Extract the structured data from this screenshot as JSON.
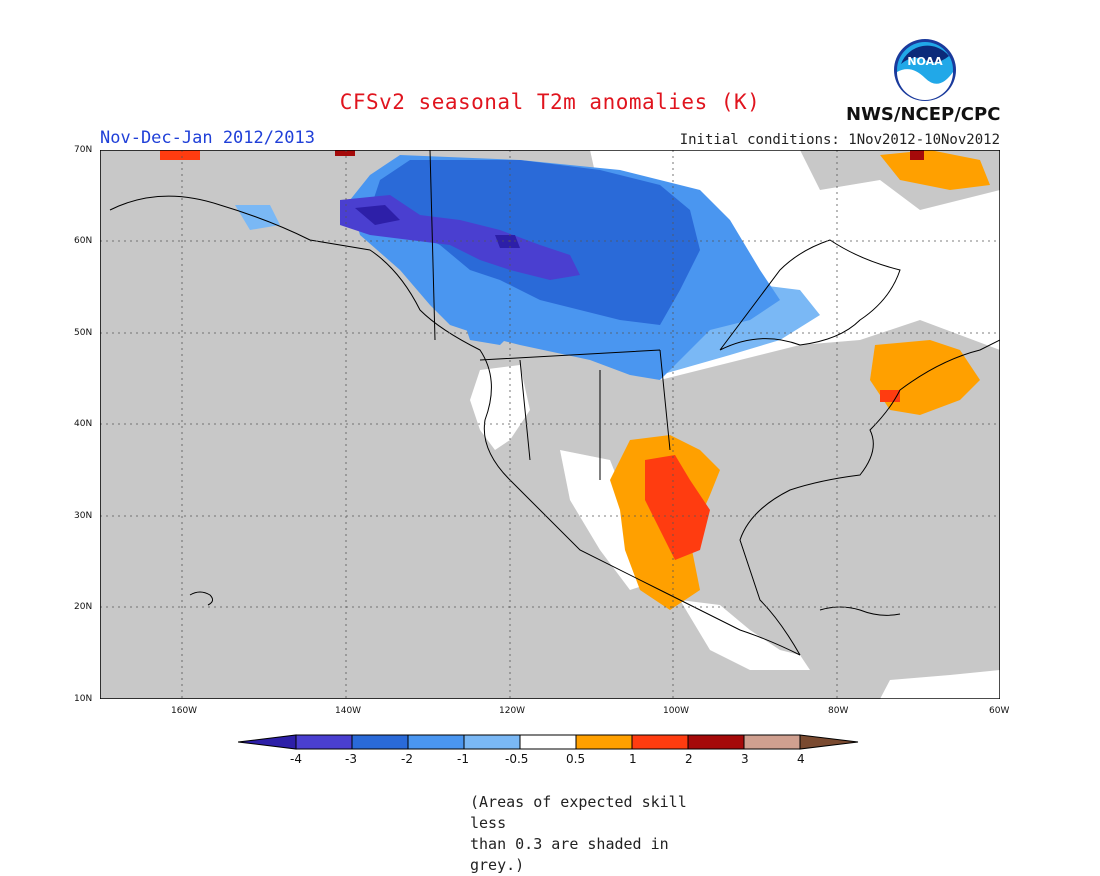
{
  "title": "CFSv2 seasonal T2m anomalies (K)",
  "period": "Nov-Dec-Jan 2012/2013",
  "initial_conditions": "Initial conditions: 1Nov2012-10Nov2012",
  "agency": "NWS/NCEP/CPC",
  "logo_text": "NOAA",
  "note_line1": "(Areas of expected skill less",
  "note_line2": "than 0.3 are shaded in grey.)",
  "map": {
    "lon_range": [
      -170,
      -60
    ],
    "lat_range": [
      10,
      70
    ],
    "lon_ticks": [
      "160W",
      "140W",
      "120W",
      "100W",
      "80W",
      "60W"
    ],
    "lat_ticks": [
      "10N",
      "20N",
      "30N",
      "40N",
      "50N",
      "60N",
      "70N"
    ],
    "grid": true,
    "low_skill_color": "#c8c8c8"
  },
  "legend": {
    "labels": [
      "-4",
      "-3",
      "-2",
      "-1",
      "-0.5",
      "0.5",
      "1",
      "2",
      "3",
      "4"
    ],
    "colors": [
      "#2d1fa8",
      "#4a3fd0",
      "#2a6ad8",
      "#4a96f0",
      "#7ab8f5",
      "#ffffff",
      "#ffa000",
      "#ff3c10",
      "#a50a0a",
      "#d0a090",
      "#7a4a30"
    ]
  }
}
